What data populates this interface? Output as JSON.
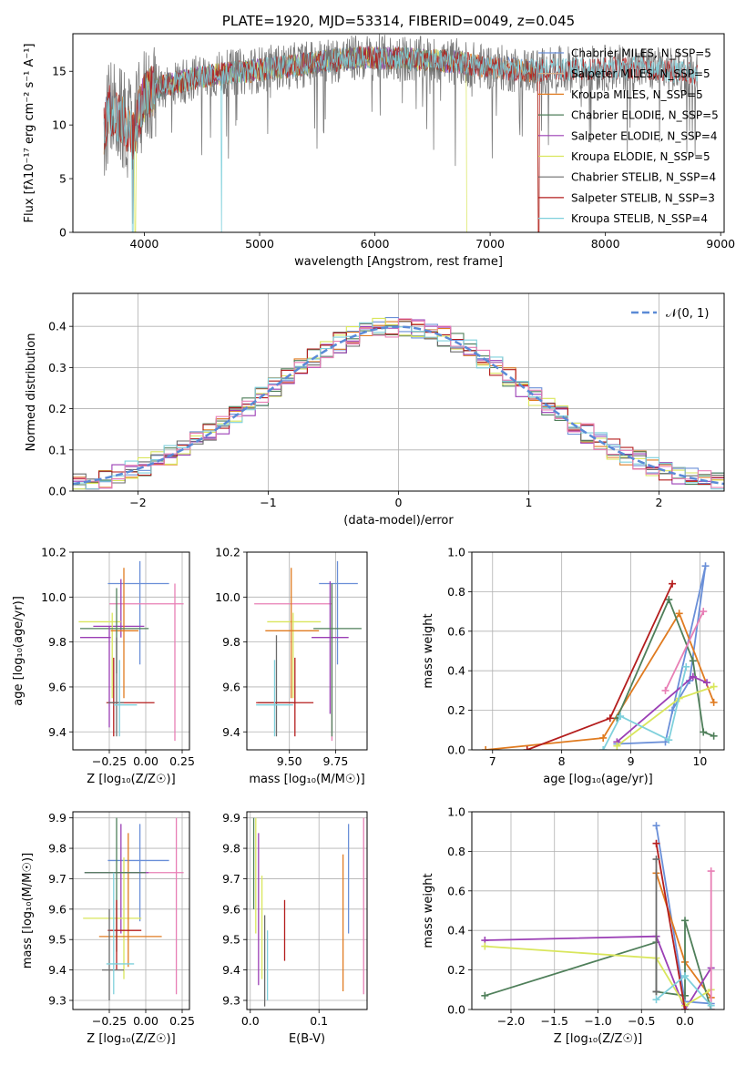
{
  "chart_data": [
    {
      "id": "spectrum",
      "type": "line",
      "title": "PLATE=1920, MJD=53314, FIBERID=0049, z=0.045",
      "xlabel": "wavelength [Angstrom, rest frame]",
      "ylabel": "Flux [fλ10⁻¹⁷ erg cm⁻² s⁻¹ A⁻¹]",
      "xlim": [
        3380,
        9030
      ],
      "ylim": [
        0,
        18.5
      ],
      "xticks": [
        4000,
        5000,
        6000,
        7000,
        8000,
        9000
      ],
      "xtick_labels": [
        "4000",
        "5000",
        "6000",
        "7000",
        "8000",
        "9000"
      ],
      "yticks": [
        0,
        5,
        10,
        15
      ],
      "ytick_labels": [
        "0",
        "5",
        "10",
        "15"
      ],
      "legend_position": "top-right",
      "series": [
        {
          "name": "Chabrier MILES, N_SSP=5",
          "color": "#6a8fd8",
          "x_range": [
            3650,
            7420
          ]
        },
        {
          "name": "Salpeter MILES, N_SSP=5",
          "color": "#d9b38c",
          "x_range": [
            3650,
            7420
          ]
        },
        {
          "name": "Kroupa MILES, N_SSP=5",
          "color": "#e07b20",
          "x_range": [
            3650,
            7420
          ]
        },
        {
          "name": "Chabrier ELODIE, N_SSP=5",
          "color": "#4f7f5a",
          "x_range": [
            3900,
            6800
          ]
        },
        {
          "name": "Salpeter ELODIE, N_SSP=4",
          "color": "#9b3fb5",
          "x_range": [
            3900,
            6800
          ]
        },
        {
          "name": "Kroupa ELODIE, N_SSP=5",
          "color": "#d9e65c",
          "x_range": [
            3900,
            6800
          ]
        },
        {
          "name": "Chabrier STELIB, N_SSP=4",
          "color": "#6b6b6b",
          "x_range": [
            3650,
            8800
          ]
        },
        {
          "name": "Salpeter STELIB, N_SSP=3",
          "color": "#b41d1d",
          "x_range": [
            3650,
            8800
          ]
        },
        {
          "name": "Kroupa STELIB, N_SSP=4",
          "color": "#7fd0dc",
          "x_range": [
            3650,
            8800
          ]
        }
      ],
      "spectrum_anchors": {
        "x": [
          3650,
          3700,
          3800,
          3900,
          3950,
          4000,
          4100,
          4300,
          4500,
          4700,
          4900,
          5100,
          5300,
          5600,
          5900,
          6200,
          6500,
          6700,
          6900,
          7100,
          7400,
          7700,
          8000,
          8300,
          8600,
          8800
        ],
        "y": [
          9.5,
          11.5,
          10.5,
          9.0,
          11.0,
          12.5,
          13.5,
          14.0,
          14.5,
          14.8,
          15.0,
          15.3,
          15.5,
          16.0,
          16.3,
          16.2,
          16.0,
          15.9,
          15.5,
          15.3,
          15.0,
          15.2,
          15.3,
          15.3,
          15.0,
          14.7
        ]
      }
    },
    {
      "id": "residuals",
      "type": "line",
      "xlabel": "(data-model)/error",
      "ylabel": "Normed distribution",
      "xlim": [
        -2.5,
        2.5
      ],
      "ylim": [
        0,
        0.48
      ],
      "xticks": [
        -2,
        -1,
        0,
        1,
        2
      ],
      "xtick_labels": [
        "−2",
        "−1",
        "0",
        "1",
        "2"
      ],
      "yticks": [
        0.0,
        0.1,
        0.2,
        0.3,
        0.4
      ],
      "ytick_labels": [
        "0.0",
        "0.1",
        "0.2",
        "0.3",
        "0.4"
      ],
      "grid": true,
      "legend_position": "top-right",
      "legend_label": "𝒩(0, 1)",
      "gauss_color": "#5a8ad6",
      "bin_width": 0.1,
      "histogram_colors": [
        "#6a8fd8",
        "#e07b20",
        "#4f7f5a",
        "#9b3fb5",
        "#d9e65c",
        "#6b6b6b",
        "#b41d1d",
        "#7fd0dc",
        "#e87fb5"
      ]
    },
    {
      "id": "age-vs-Z",
      "type": "scatter",
      "xlabel": "Z [log₁₀(Z/Z☉)]",
      "ylabel": "age  [log₁₀(age/yr)]",
      "xlim": [
        -0.5,
        0.3
      ],
      "ylim": [
        9.32,
        10.2
      ],
      "xticks": [
        -0.25,
        0.0,
        0.25
      ],
      "xtick_labels": [
        "−0.25",
        "0.00",
        "0.25"
      ],
      "yticks": [
        9.4,
        9.6,
        9.8,
        10.0,
        10.2
      ],
      "ytick_labels": [
        "9.4",
        "9.6",
        "9.8",
        "10.0",
        "10.2"
      ],
      "grid": true,
      "points": [
        {
          "x": -0.04,
          "xerr": [
            0.22,
            0.2
          ],
          "y": 10.06,
          "yerr": [
            0.36,
            0.1
          ],
          "color": "#6a8fd8"
        },
        {
          "x": 0.2,
          "xerr": [
            0.45,
            0.06
          ],
          "y": 9.97,
          "yerr": [
            0.61,
            0.09
          ],
          "color": "#e87fb5"
        },
        {
          "x": -0.17,
          "xerr": [
            0.19,
            0.16
          ],
          "y": 9.87,
          "yerr": [
            0.05,
            0.21
          ],
          "color": "#9b3fb5"
        },
        {
          "x": -0.23,
          "xerr": [
            0.23,
            0.06
          ],
          "y": 9.89,
          "yerr": [
            0.34,
            0.04
          ],
          "color": "#d9e65c"
        },
        {
          "x": -0.15,
          "xerr": [
            0.09,
            0.1
          ],
          "y": 9.85,
          "yerr": [
            0.3,
            0.28
          ],
          "color": "#e07b20"
        },
        {
          "x": -0.2,
          "xerr": [
            0.25,
            0.22
          ],
          "y": 9.86,
          "yerr": [
            0.2,
            0.18
          ],
          "color": "#4f7f5a"
        },
        {
          "x": -0.25,
          "xerr": [
            0.2,
            0.01
          ],
          "y": 9.82,
          "yerr": [
            0.4,
            0.05
          ],
          "color": "#9b3fb5"
        },
        {
          "x": -0.22,
          "xerr": [
            0.05,
            0.28
          ],
          "y": 9.53,
          "yerr": [
            0.15,
            0.2
          ],
          "color": "#b41d1d"
        },
        {
          "x": -0.2,
          "xerr": [
            0.06,
            0.05
          ],
          "y": 9.53,
          "yerr": [
            0.15,
            0.29
          ],
          "color": "#6b6b6b"
        },
        {
          "x": -0.18,
          "xerr": [
            0.04,
            0.12
          ],
          "y": 9.52,
          "yerr": [
            0.14,
            0.2
          ],
          "color": "#7fd0dc"
        }
      ]
    },
    {
      "id": "age-vs-mass",
      "type": "scatter",
      "xlabel": "mass [log₁₀(M/M☉)]",
      "ylabel": "",
      "xlim": [
        9.27,
        9.92
      ],
      "ylim": [
        9.32,
        10.2
      ],
      "xticks": [
        9.5,
        9.75
      ],
      "xtick_labels": [
        "9.50",
        "9.75"
      ],
      "yticks": [
        9.4,
        9.6,
        9.8,
        10.0,
        10.2
      ],
      "ytick_labels": [
        "9.4",
        "9.6",
        "9.8",
        "10.0",
        "10.2"
      ],
      "grid": true,
      "points": [
        {
          "x": 9.76,
          "xerr": [
            0.1,
            0.11
          ],
          "y": 10.06,
          "yerr": [
            0.36,
            0.1
          ],
          "color": "#6a8fd8"
        },
        {
          "x": 9.73,
          "xerr": [
            0.42,
            0.0
          ],
          "y": 9.97,
          "yerr": [
            0.61,
            0.09
          ],
          "color": "#e87fb5"
        },
        {
          "x": 9.72,
          "xerr": [
            0.1,
            0.1
          ],
          "y": 9.82,
          "yerr": [
            0.34,
            0.25
          ],
          "color": "#9b3fb5"
        },
        {
          "x": 9.52,
          "xerr": [
            0.14,
            0.15
          ],
          "y": 9.89,
          "yerr": [
            0.34,
            0.04
          ],
          "color": "#d9e65c"
        },
        {
          "x": 9.51,
          "xerr": [
            0.14,
            0.15
          ],
          "y": 9.85,
          "yerr": [
            0.3,
            0.28
          ],
          "color": "#e07b20"
        },
        {
          "x": 9.73,
          "xerr": [
            0.1,
            0.16
          ],
          "y": 9.86,
          "yerr": [
            0.48,
            0.2
          ],
          "color": "#4f7f5a"
        },
        {
          "x": 9.43,
          "xerr": [
            0.1,
            0.1
          ],
          "y": 9.53,
          "yerr": [
            0.15,
            0.3
          ],
          "color": "#6b6b6b"
        },
        {
          "x": 9.53,
          "xerr": [
            0.21,
            0.1
          ],
          "y": 9.53,
          "yerr": [
            0.15,
            0.2
          ],
          "color": "#b41d1d"
        },
        {
          "x": 9.42,
          "xerr": [
            0.1,
            0.1
          ],
          "y": 9.52,
          "yerr": [
            0.14,
            0.2
          ],
          "color": "#7fd0dc"
        }
      ]
    },
    {
      "id": "weight-vs-age",
      "type": "line",
      "xlabel": "age  [log₁₀(age/yr)]",
      "ylabel": "mass weight",
      "xlim": [
        6.7,
        10.35
      ],
      "ylim": [
        0,
        1.0
      ],
      "xticks": [
        7,
        8,
        9,
        10
      ],
      "xtick_labels": [
        "7",
        "8",
        "9",
        "10"
      ],
      "yticks": [
        0.0,
        0.2,
        0.4,
        0.6,
        0.8,
        1.0
      ],
      "ytick_labels": [
        "0.0",
        "0.2",
        "0.4",
        "0.6",
        "0.8",
        "1.0"
      ],
      "grid": true,
      "series": [
        {
          "color": "#6a8fd8",
          "x": [
            8.8,
            9.5,
            10.08,
            9.85,
            9.6
          ],
          "y": [
            0.03,
            0.04,
            0.93,
            0.35,
            0.2
          ]
        },
        {
          "color": "#e07b20",
          "x": [
            6.9,
            8.6,
            9.7,
            10.2
          ],
          "y": [
            0.0,
            0.06,
            0.69,
            0.24
          ]
        },
        {
          "color": "#4f7f5a",
          "x": [
            8.8,
            9.55,
            9.9,
            10.05,
            10.2
          ],
          "y": [
            0.16,
            0.76,
            0.45,
            0.09,
            0.07
          ]
        },
        {
          "color": "#9b3fb5",
          "x": [
            8.8,
            9.9,
            10.1
          ],
          "y": [
            0.04,
            0.37,
            0.34
          ]
        },
        {
          "color": "#d9e65c",
          "x": [
            8.8,
            9.7,
            10.2
          ],
          "y": [
            0.02,
            0.26,
            0.32
          ]
        },
        {
          "color": "#b41d1d",
          "x": [
            7.5,
            8.7,
            9.6
          ],
          "y": [
            0.0,
            0.16,
            0.84
          ]
        },
        {
          "color": "#e87fb5",
          "x": [
            9.5,
            10.05
          ],
          "y": [
            0.3,
            0.7
          ]
        },
        {
          "color": "#7fd0dc",
          "x": [
            8.6,
            8.85,
            9.55,
            9.8
          ],
          "y": [
            0.0,
            0.17,
            0.05,
            0.42
          ]
        }
      ]
    },
    {
      "id": "mass-vs-Z",
      "type": "scatter",
      "xlabel": "Z [log₁₀(Z/Z☉)]",
      "ylabel": "mass [log₁₀(M/M☉)]",
      "xlim": [
        -0.5,
        0.3
      ],
      "ylim": [
        9.27,
        9.92
      ],
      "xticks": [
        -0.25,
        0.0,
        0.25
      ],
      "xtick_labels": [
        "−0.25",
        "0.00",
        "0.25"
      ],
      "yticks": [
        9.3,
        9.4,
        9.5,
        9.6,
        9.7,
        9.8,
        9.9
      ],
      "ytick_labels": [
        "9.3",
        "9.4",
        "9.5",
        "9.6",
        "9.7",
        "9.8",
        "9.9"
      ],
      "grid": true,
      "points": [
        {
          "x": -0.04,
          "xerr": [
            0.22,
            0.2
          ],
          "y": 9.76,
          "yerr": [
            0.2,
            0.12
          ],
          "color": "#6a8fd8"
        },
        {
          "x": 0.21,
          "xerr": [
            0.43,
            0.05
          ],
          "y": 9.72,
          "yerr": [
            0.4,
            0.18
          ],
          "color": "#e87fb5"
        },
        {
          "x": -0.17,
          "xerr": [
            0.25,
            0.19
          ],
          "y": 9.72,
          "yerr": [
            0.2,
            0.16
          ],
          "color": "#9b3fb5"
        },
        {
          "x": -0.15,
          "xerr": [
            0.28,
            0.12
          ],
          "y": 9.57,
          "yerr": [
            0.2,
            0.2
          ],
          "color": "#d9e65c"
        },
        {
          "x": -0.12,
          "xerr": [
            0.2,
            0.23
          ],
          "y": 9.51,
          "yerr": [
            0.1,
            0.34
          ],
          "color": "#e07b20"
        },
        {
          "x": -0.2,
          "xerr": [
            0.22,
            0.2
          ],
          "y": 9.72,
          "yerr": [
            0.26,
            0.18
          ],
          "color": "#4f7f5a"
        },
        {
          "x": -0.2,
          "xerr": [
            0.06,
            0.17
          ],
          "y": 9.53,
          "yerr": [
            0.13,
            0.1
          ],
          "color": "#b41d1d"
        },
        {
          "x": -0.25,
          "xerr": [
            0.05,
            0.1
          ],
          "y": 9.4,
          "yerr": [
            0.1,
            0.2
          ],
          "color": "#6b6b6b"
        },
        {
          "x": -0.22,
          "xerr": [
            0.05,
            0.14
          ],
          "y": 9.42,
          "yerr": [
            0.1,
            0.3
          ],
          "color": "#7fd0dc"
        }
      ]
    },
    {
      "id": "mass-vs-ebv",
      "type": "scatter",
      "xlabel": "E(B-V)",
      "ylabel": "",
      "xlim": [
        -0.005,
        0.17
      ],
      "ylim": [
        9.27,
        9.92
      ],
      "xticks": [
        0.0,
        0.1
      ],
      "xtick_labels": [
        "0.0",
        "0.1"
      ],
      "yticks": [
        9.3,
        9.4,
        9.5,
        9.6,
        9.7,
        9.8,
        9.9
      ],
      "ytick_labels": [
        "9.3",
        "9.4",
        "9.5",
        "9.6",
        "9.7",
        "9.8",
        "9.9"
      ],
      "grid": true,
      "points": [
        {
          "x": 0.005,
          "y": 9.85,
          "yerr": [
            0.25,
            0.05
          ],
          "color": "#4f7f5a"
        },
        {
          "x": 0.008,
          "y": 9.72,
          "yerr": [
            0.2,
            0.18
          ],
          "color": "#d9e65c"
        },
        {
          "x": 0.012,
          "y": 9.7,
          "yerr": [
            0.35,
            0.15
          ],
          "color": "#9b3fb5"
        },
        {
          "x": 0.017,
          "y": 9.58,
          "yerr": [
            0.21,
            0.13
          ],
          "color": "#d9e65c"
        },
        {
          "x": 0.021,
          "y": 9.48,
          "yerr": [
            0.2,
            0.1
          ],
          "color": "#6b6b6b"
        },
        {
          "x": 0.025,
          "y": 9.43,
          "yerr": [
            0.13,
            0.1
          ],
          "color": "#7fd0dc"
        },
        {
          "x": 0.05,
          "y": 9.53,
          "yerr": [
            0.1,
            0.1
          ],
          "color": "#b41d1d"
        },
        {
          "x": 0.135,
          "y": 9.55,
          "yerr": [
            0.22,
            0.23
          ],
          "color": "#e07b20"
        },
        {
          "x": 0.143,
          "y": 9.7,
          "yerr": [
            0.18,
            0.18
          ],
          "color": "#6a8fd8"
        },
        {
          "x": 0.165,
          "y": 9.61,
          "yerr": [
            0.29,
            0.29
          ],
          "color": "#e87fb5"
        }
      ]
    },
    {
      "id": "weight-vs-Z",
      "type": "line",
      "xlabel": "Z [log₁₀(Z/Z☉)]",
      "ylabel": "mass weight",
      "xlim": [
        -2.45,
        0.45
      ],
      "ylim": [
        0,
        1.0
      ],
      "xticks": [
        -2.0,
        -1.5,
        -1.0,
        -0.5,
        0.0
      ],
      "xtick_labels": [
        "−2.0",
        "−1.5",
        "−1.0",
        "−0.5",
        "0.0"
      ],
      "yticks": [
        0.0,
        0.2,
        0.4,
        0.6,
        0.8,
        1.0
      ],
      "ytick_labels": [
        "0.0",
        "0.2",
        "0.4",
        "0.6",
        "0.8",
        "1.0"
      ],
      "grid": true,
      "series": [
        {
          "color": "#6a8fd8",
          "x": [
            -0.33,
            0.0,
            0.3
          ],
          "y": [
            0.93,
            0.04,
            0.03
          ]
        },
        {
          "color": "#e07b20",
          "x": [
            -0.33,
            0.0,
            0.3
          ],
          "y": [
            0.69,
            0.24,
            0.06
          ]
        },
        {
          "color": "#4f7f5a",
          "x": [
            -2.3,
            -0.33,
            -0.33,
            0.0,
            0.0,
            0.3
          ],
          "y": [
            0.07,
            0.34,
            0.09,
            0.07,
            0.45,
            0.0
          ]
        },
        {
          "color": "#9b3fb5",
          "x": [
            -2.3,
            -0.33,
            0.0,
            0.3
          ],
          "y": [
            0.35,
            0.37,
            0.0,
            0.21
          ]
        },
        {
          "color": "#d9e65c",
          "x": [
            -2.3,
            -0.33,
            0.0,
            0.3
          ],
          "y": [
            0.32,
            0.26,
            0.02,
            0.1
          ]
        },
        {
          "color": "#b41d1d",
          "x": [
            -0.33,
            0.0
          ],
          "y": [
            0.84,
            0.0
          ]
        },
        {
          "color": "#e87fb5",
          "x": [
            0.3,
            0.3
          ],
          "y": [
            0.0,
            0.7
          ]
        },
        {
          "color": "#6b6b6b",
          "x": [
            -0.33,
            -0.33
          ],
          "y": [
            0.76,
            0.09
          ]
        },
        {
          "color": "#7fd0dc",
          "x": [
            -0.33,
            0.0,
            0.3
          ],
          "y": [
            0.05,
            0.17,
            0.02
          ]
        }
      ]
    }
  ]
}
